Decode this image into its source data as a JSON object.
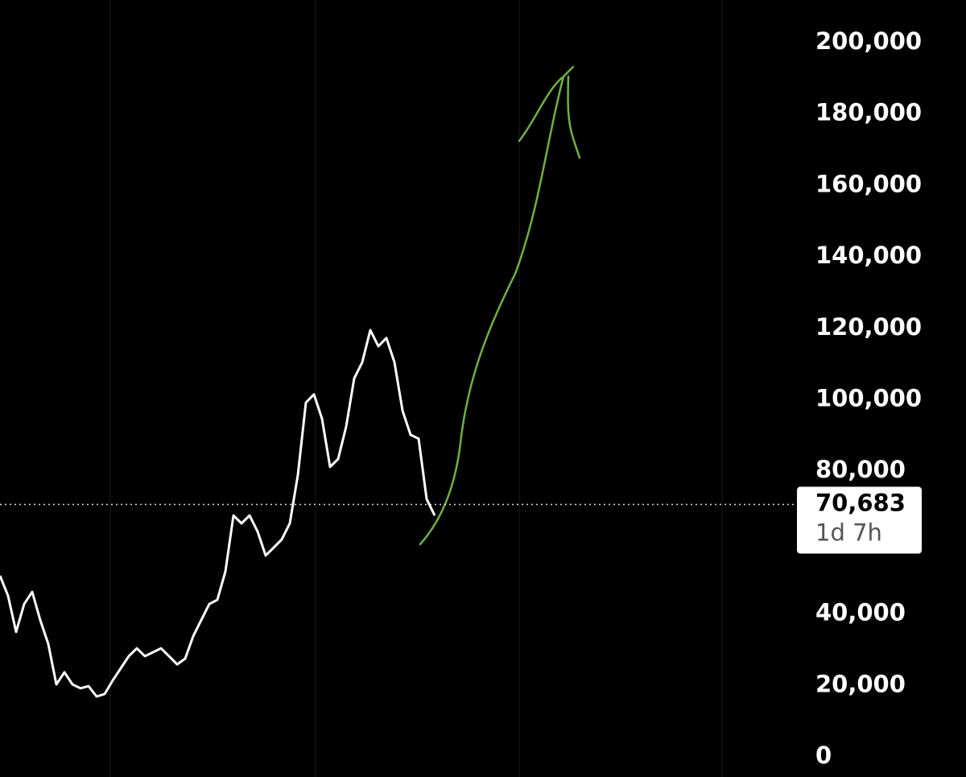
{
  "chart_data": {
    "type": "line",
    "values": [
      50700,
      45100,
      35000,
      42800,
      46200,
      38300,
      31600,
      20300,
      23700,
      20300,
      19200,
      19800,
      16900,
      17600,
      21400,
      24800,
      28200,
      30400,
      28200,
      29300,
      30400,
      28200,
      25900,
      27500,
      33800,
      38300,
      42800,
      44000,
      51900,
      67600,
      65400,
      67600,
      63100,
      56400,
      58600,
      60900,
      65400,
      78900,
      99200,
      101500,
      94700,
      81200,
      83400,
      92500,
      106000,
      110500,
      119500,
      115000,
      117300,
      110500,
      97000,
      90200,
      89100,
      72200,
      67600
    ],
    "color": "#ffffff",
    "ylim": [
      0,
      200000
    ],
    "yticks": [
      0,
      {
        "value": 20000,
        "label": "20,000"
      },
      {
        "value": 40000,
        "label": "40,000"
      },
      {
        "value": 80000,
        "label": "80,000"
      },
      {
        "value": 100000,
        "label": "100,000"
      },
      {
        "value": 120000,
        "label": "120,000"
      },
      {
        "value": 140000,
        "label": "140,000"
      },
      {
        "value": 160000,
        "label": "160,000"
      },
      {
        "value": 180000,
        "label": "180,000"
      },
      {
        "value": 200000,
        "label": "200,000"
      }
    ],
    "current_price": {
      "value": 70683,
      "label": "70,683"
    },
    "countdown": "1d 7h"
  }
}
